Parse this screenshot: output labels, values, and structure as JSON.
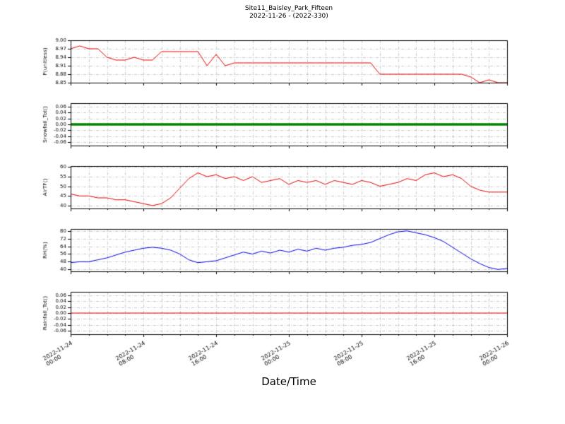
{
  "chart_data": {
    "type": "line",
    "title": "Site11_Baisley_Park_Fifteen",
    "subtitle": "2022-11-26 - (2022-330)",
    "xlabel": "Date/Time",
    "grid": true,
    "xlim": [
      0,
      48
    ],
    "minor_x_step": 2,
    "xticks": [
      {
        "hour": 0,
        "label": "2022-11-24 00:00"
      },
      {
        "hour": 8,
        "label": "2022-11-24 08:00"
      },
      {
        "hour": 16,
        "label": "2022-11-24 16:00"
      },
      {
        "hour": 24,
        "label": "2022-11-25 00:00"
      },
      {
        "hour": 32,
        "label": "2022-11-25 08:00"
      },
      {
        "hour": 40,
        "label": "2022-11-25 16:00"
      },
      {
        "hour": 48,
        "label": "2022-11-26 00:00"
      }
    ],
    "panels": [
      {
        "ylabel": "P(unitless)",
        "color": "#e00000",
        "line_width": 1,
        "ylim": [
          8.85,
          9.0
        ],
        "ytick_values": [
          8.85,
          8.88,
          8.91,
          8.94,
          8.97,
          9.0
        ],
        "ytick_labels": [
          "8.85",
          "8.88",
          "8.91",
          "8.94",
          "8.97",
          "9.00"
        ],
        "values": [
          8.97,
          8.98,
          8.97,
          8.97,
          8.94,
          8.93,
          8.93,
          8.94,
          8.93,
          8.93,
          8.96,
          8.96,
          8.96,
          8.96,
          8.96,
          8.91,
          8.95,
          8.91,
          8.92,
          8.92,
          8.92,
          8.92,
          8.92,
          8.92,
          8.92,
          8.92,
          8.92,
          8.92,
          8.92,
          8.92,
          8.92,
          8.92,
          8.92,
          8.92,
          8.88,
          8.88,
          8.88,
          8.88,
          8.88,
          8.88,
          8.88,
          8.88,
          8.88,
          8.88,
          8.87,
          8.85,
          8.86,
          8.85,
          8.85
        ]
      },
      {
        "ylabel": "Snowfall_Tot()",
        "color": "#008000",
        "line_width": 3.5,
        "ylim": [
          -0.072,
          0.072
        ],
        "ytick_values": [
          -0.06,
          -0.04,
          -0.02,
          0,
          0.02,
          0.04,
          0.06
        ],
        "ytick_labels": [
          "-0.06",
          "-0.04",
          "-0.02",
          "0.00",
          "0.02",
          "0.04",
          "0.06"
        ],
        "values": [
          0,
          0
        ]
      },
      {
        "ylabel": "AirTF()",
        "color": "#e00000",
        "line_width": 1,
        "ylim": [
          38.5,
          60.5
        ],
        "ytick_values": [
          40,
          45,
          50,
          55,
          60
        ],
        "ytick_labels": [
          "40",
          "45",
          "50",
          "55",
          "60"
        ],
        "values": [
          46,
          45,
          45,
          44,
          44,
          43,
          43,
          42,
          41,
          40,
          41,
          44,
          49,
          54,
          57,
          55,
          56,
          54,
          55,
          53,
          55,
          52,
          53,
          54,
          51,
          53,
          52,
          53,
          51,
          53,
          52,
          51,
          53,
          52,
          50,
          51,
          52,
          54,
          53,
          56,
          57,
          55,
          56,
          54,
          50,
          48,
          47,
          47,
          47
        ]
      },
      {
        "ylabel": "RH(%)",
        "color": "#0000dd",
        "line_width": 1,
        "ylim": [
          38,
          82
        ],
        "ytick_values": [
          40,
          48,
          56,
          64,
          72,
          80
        ],
        "ytick_labels": [
          "40",
          "48",
          "56",
          "64",
          "72",
          "80"
        ],
        "values": [
          47,
          48,
          48,
          50,
          52,
          55,
          58,
          60,
          62,
          63,
          62,
          60,
          56,
          50,
          47,
          48,
          49,
          52,
          55,
          58,
          56,
          59,
          57,
          60,
          58,
          61,
          59,
          62,
          60,
          62,
          63,
          65,
          66,
          68,
          72,
          76,
          79,
          80,
          78,
          76,
          73,
          69,
          63,
          57,
          51,
          46,
          42,
          40,
          41
        ]
      },
      {
        "ylabel": "Rainfall_Tot()",
        "color": "#e00000",
        "line_width": 1,
        "ylim": [
          -0.072,
          0.072
        ],
        "ytick_values": [
          -0.06,
          -0.04,
          -0.02,
          0,
          0.02,
          0.04,
          0.06
        ],
        "ytick_labels": [
          "-0.06",
          "-0.04",
          "-0.02",
          "0.00",
          "0.02",
          "0.04",
          "0.06"
        ],
        "values": [
          0,
          0
        ]
      }
    ]
  }
}
